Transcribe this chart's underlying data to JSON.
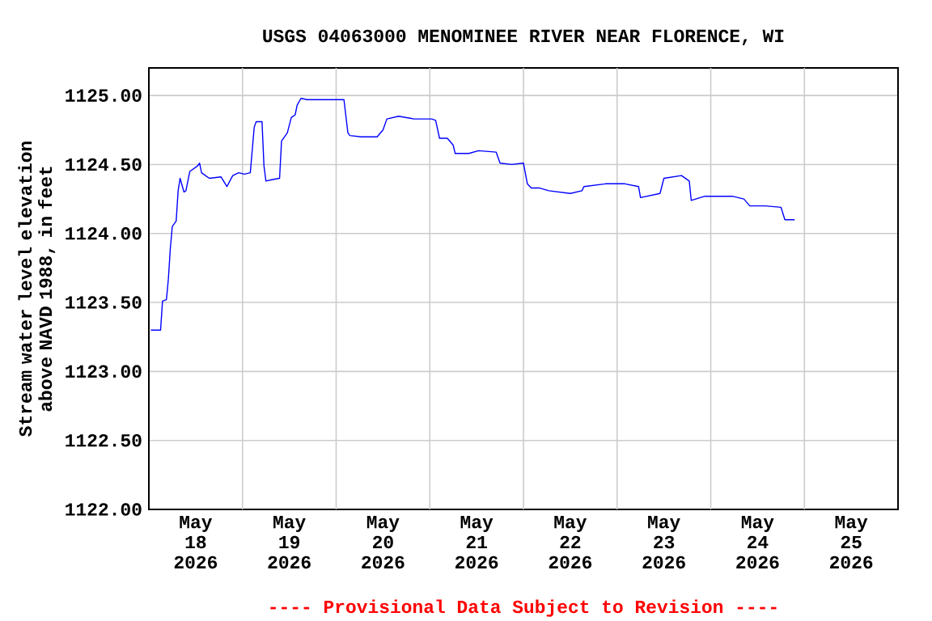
{
  "chart_data": {
    "type": "line",
    "title": "USGS 04063000 MENOMINEE RIVER NEAR FLORENCE, WI",
    "ylabel": "Stream water level elevation above NAVD 1988, in feet",
    "annotations": [
      "---- Provisional Data Subject to Revision ----"
    ],
    "color": "#0000ff",
    "grid": true,
    "xlim": [
      "2026-05-18T00:00",
      "2026-05-26T00:00"
    ],
    "ylim": [
      1122,
      1125.2
    ],
    "yticks": [
      {
        "value": 1122,
        "label": "1122.00"
      },
      {
        "value": 1122.5,
        "label": "1122.50"
      },
      {
        "value": 1123,
        "label": "1123.00"
      },
      {
        "value": 1123.5,
        "label": "1123.50"
      },
      {
        "value": 1124,
        "label": "1124.00"
      },
      {
        "value": 1124.5,
        "label": "1124.50"
      },
      {
        "value": 1125,
        "label": "1125.00"
      }
    ],
    "xticks": [
      {
        "value": "2026-05-18T12:00",
        "label": "May 18 2026"
      },
      {
        "value": "2026-05-19T12:00",
        "label": "May 19 2026"
      },
      {
        "value": "2026-05-20T12:00",
        "label": "May 20 2026"
      },
      {
        "value": "2026-05-21T12:00",
        "label": "May 21 2026"
      },
      {
        "value": "2026-05-22T12:00",
        "label": "May 22 2026"
      },
      {
        "value": "2026-05-23T12:00",
        "label": "May 23 2026"
      },
      {
        "value": "2026-05-24T12:00",
        "label": "May 24 2026"
      },
      {
        "value": "2026-05-25T12:00",
        "label": "May 25 2026"
      },
      {
        "value": "2026-05-19T00:00",
        "label": null
      },
      {
        "value": "2026-05-20T00:00",
        "label": null
      },
      {
        "value": "2026-05-21T00:00",
        "label": null
      },
      {
        "value": "2026-05-22T00:00",
        "label": null
      },
      {
        "value": "2026-05-23T00:00",
        "label": null
      },
      {
        "value": "2026-05-24T00:00",
        "label": null
      },
      {
        "value": "2026-05-25T00:00",
        "label": null
      }
    ],
    "x": [
      "2026-05-18T00:30",
      "2026-05-18T03:00",
      "2026-05-18T03:30",
      "2026-05-18T04:30",
      "2026-05-18T05:00",
      "2026-05-18T05:30",
      "2026-05-18T06:00",
      "2026-05-18T07:00",
      "2026-05-18T07:30",
      "2026-05-18T08:00",
      "2026-05-18T09:00",
      "2026-05-18T09:30",
      "2026-05-18T10:30",
      "2026-05-18T12:30",
      "2026-05-18T13:00",
      "2026-05-18T13:30",
      "2026-05-18T15:30",
      "2026-05-18T18:30",
      "2026-05-18T20:00",
      "2026-05-18T21:30",
      "2026-05-18T23:00",
      "2026-05-19T00:30",
      "2026-05-19T02:00",
      "2026-05-19T03:00",
      "2026-05-19T03:30",
      "2026-05-19T05:00",
      "2026-05-19T05:30",
      "2026-05-19T06:00",
      "2026-05-19T07:30",
      "2026-05-19T09:30",
      "2026-05-19T10:00",
      "2026-05-19T11:00",
      "2026-05-19T11:30",
      "2026-05-19T12:30",
      "2026-05-19T13:30",
      "2026-05-19T14:00",
      "2026-05-19T15:00",
      "2026-05-19T16:30",
      "2026-05-19T19:30",
      "2026-05-19T22:00",
      "2026-05-20T01:00",
      "2026-05-20T02:00",
      "2026-05-20T03:00",
      "2026-05-20T03:30",
      "2026-05-20T06:30",
      "2026-05-20T10:30",
      "2026-05-20T12:00",
      "2026-05-20T13:00",
      "2026-05-20T16:00",
      "2026-05-20T20:00",
      "2026-05-21T00:30",
      "2026-05-21T01:30",
      "2026-05-21T02:30",
      "2026-05-21T04:30",
      "2026-05-21T06:00",
      "2026-05-21T06:30",
      "2026-05-21T10:00",
      "2026-05-21T12:30",
      "2026-05-21T17:00",
      "2026-05-21T18:00",
      "2026-05-21T21:00",
      "2026-05-22T00:00",
      "2026-05-22T01:00",
      "2026-05-22T02:00",
      "2026-05-22T04:00",
      "2026-05-22T06:30",
      "2026-05-22T12:00",
      "2026-05-22T15:00",
      "2026-05-22T15:30",
      "2026-05-22T21:00",
      "2026-05-23T02:00",
      "2026-05-23T05:30",
      "2026-05-23T06:00",
      "2026-05-23T11:00",
      "2026-05-23T12:00",
      "2026-05-23T16:30",
      "2026-05-23T18:30",
      "2026-05-23T19:00",
      "2026-05-23T22:30",
      "2026-05-24T05:30",
      "2026-05-24T08:30",
      "2026-05-24T10:00",
      "2026-05-24T14:00",
      "2026-05-24T18:00",
      "2026-05-24T19:00",
      "2026-05-24T21:30"
    ],
    "values": [
      1123.3,
      1123.3,
      1123.51,
      1123.52,
      1123.67,
      1123.89,
      1124.05,
      1124.09,
      1124.31,
      1124.4,
      1124.3,
      1124.31,
      1124.45,
      1124.49,
      1124.51,
      1124.44,
      1124.4,
      1124.41,
      1124.34,
      1124.42,
      1124.44,
      1124.43,
      1124.44,
      1124.77,
      1124.81,
      1124.81,
      1124.49,
      1124.38,
      1124.39,
      1124.4,
      1124.67,
      1124.71,
      1124.73,
      1124.84,
      1124.86,
      1124.93,
      1124.98,
      1124.97,
      1124.97,
      1124.97,
      1124.97,
      1124.97,
      1124.73,
      1124.71,
      1124.7,
      1124.7,
      1124.75,
      1124.83,
      1124.85,
      1124.83,
      1124.83,
      1124.82,
      1124.69,
      1124.69,
      1124.64,
      1124.58,
      1124.58,
      1124.6,
      1124.59,
      1124.51,
      1124.5,
      1124.51,
      1124.36,
      1124.33,
      1124.33,
      1124.31,
      1124.29,
      1124.31,
      1124.34,
      1124.36,
      1124.36,
      1124.34,
      1124.26,
      1124.29,
      1124.4,
      1124.42,
      1124.38,
      1124.24,
      1124.27,
      1124.27,
      1124.25,
      1124.2,
      1124.2,
      1124.19,
      1124.1,
      1124.1
    ]
  }
}
